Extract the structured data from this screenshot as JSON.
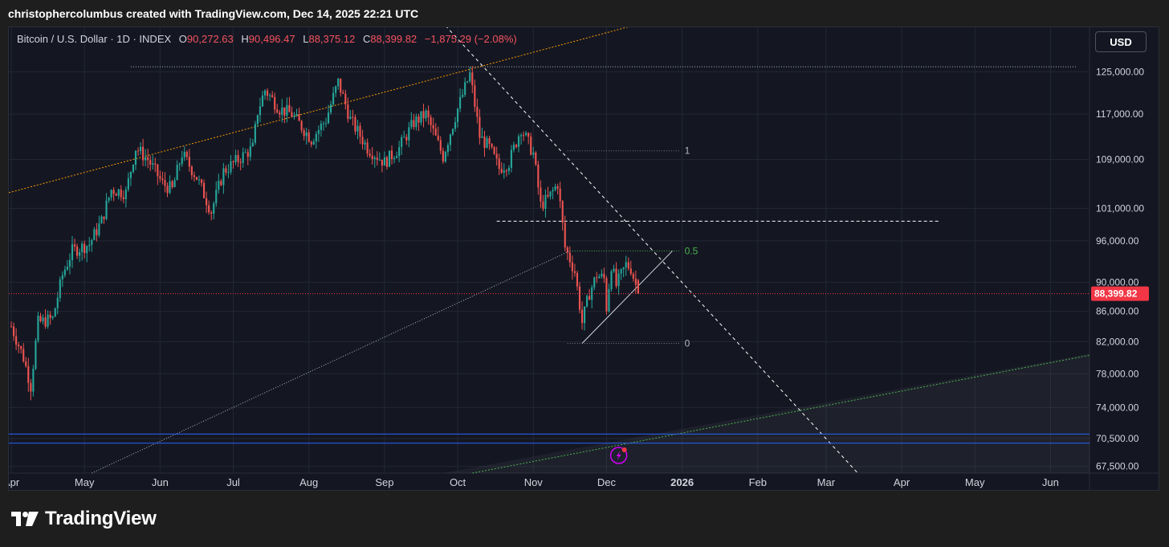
{
  "header": {
    "text": "christophercolumbus created with TradingView.com, Dec 14, 2025 22:21 UTC"
  },
  "legend": {
    "symbol": "Bitcoin / U.S. Dollar · 1D · INDEX",
    "open_label": "O",
    "open": "90,272.63",
    "high_label": "H",
    "high": "90,496.47",
    "low_label": "L",
    "low": "88,375.12",
    "close_label": "C",
    "close": "88,399.82",
    "change": "−1,875.29 (−2.08%)"
  },
  "toolbar": {
    "currency": "USD"
  },
  "brand": {
    "name": "TradingView"
  },
  "colors": {
    "up": "#26a69a",
    "down": "#ef5350",
    "bg": "#141722",
    "grid": "#232735",
    "price_badge": "#f23645",
    "fib_mid": "#4caf50",
    "blue_line": "#2962ff",
    "orange_line": "#ff9800",
    "green_line": "#4caf50"
  },
  "chart_data": {
    "type": "candlestick",
    "symbol": "Bitcoin / U.S. Dollar",
    "interval": "1D",
    "scale": "log",
    "last_price": 88399.82,
    "last_price_label": "88,399.82",
    "ylim": [
      66800,
      134000
    ],
    "y_ticks": [
      {
        "value": 125000,
        "label": "125,000.00"
      },
      {
        "value": 117000,
        "label": "117,000.00"
      },
      {
        "value": 109000,
        "label": "109,000.00"
      },
      {
        "value": 101000,
        "label": "101,000.00"
      },
      {
        "value": 96000,
        "label": "96,000.00"
      },
      {
        "value": 90000,
        "label": "90,000.00"
      },
      {
        "value": 86000,
        "label": "86,000.00"
      },
      {
        "value": 82000,
        "label": "82,000.00"
      },
      {
        "value": 78000,
        "label": "78,000.00"
      },
      {
        "value": 74000,
        "label": "74,000.00"
      },
      {
        "value": 70500,
        "label": "70,500.00"
      },
      {
        "value": 67500,
        "label": "67,500.00"
      }
    ],
    "x_range": [
      "2025-03-31",
      "2026-06-17"
    ],
    "x_ticks": [
      {
        "date": "2025-04-01",
        "label": "Apr"
      },
      {
        "date": "2025-05-01",
        "label": "May"
      },
      {
        "date": "2025-06-01",
        "label": "Jun"
      },
      {
        "date": "2025-07-01",
        "label": "Jul"
      },
      {
        "date": "2025-08-01",
        "label": "Aug"
      },
      {
        "date": "2025-09-01",
        "label": "Sep"
      },
      {
        "date": "2025-10-01",
        "label": "Oct"
      },
      {
        "date": "2025-11-01",
        "label": "Nov"
      },
      {
        "date": "2025-12-01",
        "label": "Dec"
      },
      {
        "date": "2026-01-01",
        "label": "2026",
        "bold": true
      },
      {
        "date": "2026-02-01",
        "label": "Feb"
      },
      {
        "date": "2026-03-01",
        "label": "Mar"
      },
      {
        "date": "2026-04-01",
        "label": "Apr"
      },
      {
        "date": "2026-05-01",
        "label": "May"
      },
      {
        "date": "2026-06-01",
        "label": "Jun"
      }
    ],
    "close_path": [
      {
        "date": "2025-04-01",
        "price": 84000
      },
      {
        "date": "2025-04-06",
        "price": 80000
      },
      {
        "date": "2025-04-09",
        "price": 76500
      },
      {
        "date": "2025-04-12",
        "price": 84500
      },
      {
        "date": "2025-04-18",
        "price": 85000
      },
      {
        "date": "2025-04-22",
        "price": 91000
      },
      {
        "date": "2025-04-26",
        "price": 94500
      },
      {
        "date": "2025-05-03",
        "price": 95500
      },
      {
        "date": "2025-05-08",
        "price": 99000
      },
      {
        "date": "2025-05-12",
        "price": 104000
      },
      {
        "date": "2025-05-18",
        "price": 103500
      },
      {
        "date": "2025-05-22",
        "price": 111000
      },
      {
        "date": "2025-05-27",
        "price": 109000
      },
      {
        "date": "2025-06-02",
        "price": 105000
      },
      {
        "date": "2025-06-06",
        "price": 104000
      },
      {
        "date": "2025-06-10",
        "price": 110000
      },
      {
        "date": "2025-06-16",
        "price": 106000
      },
      {
        "date": "2025-06-22",
        "price": 100500
      },
      {
        "date": "2025-06-27",
        "price": 107000
      },
      {
        "date": "2025-07-03",
        "price": 109000
      },
      {
        "date": "2025-07-09",
        "price": 111000
      },
      {
        "date": "2025-07-11",
        "price": 117500
      },
      {
        "date": "2025-07-14",
        "price": 121500
      },
      {
        "date": "2025-07-20",
        "price": 118000
      },
      {
        "date": "2025-07-25",
        "price": 117000
      },
      {
        "date": "2025-08-02",
        "price": 112500
      },
      {
        "date": "2025-08-08",
        "price": 116000
      },
      {
        "date": "2025-08-13",
        "price": 123000
      },
      {
        "date": "2025-08-18",
        "price": 116000
      },
      {
        "date": "2025-08-25",
        "price": 111000
      },
      {
        "date": "2025-09-01",
        "price": 108500
      },
      {
        "date": "2025-09-07",
        "price": 111000
      },
      {
        "date": "2025-09-13",
        "price": 115500
      },
      {
        "date": "2025-09-18",
        "price": 117000
      },
      {
        "date": "2025-09-25",
        "price": 109500
      },
      {
        "date": "2025-10-01",
        "price": 118000
      },
      {
        "date": "2025-10-06",
        "price": 124500
      },
      {
        "date": "2025-10-10",
        "price": 113000
      },
      {
        "date": "2025-10-14",
        "price": 111000
      },
      {
        "date": "2025-10-18",
        "price": 107500
      },
      {
        "date": "2025-10-22",
        "price": 108500
      },
      {
        "date": "2025-10-27",
        "price": 114500
      },
      {
        "date": "2025-11-01",
        "price": 110000
      },
      {
        "date": "2025-11-04",
        "price": 101500
      },
      {
        "date": "2025-11-07",
        "price": 102500
      },
      {
        "date": "2025-11-11",
        "price": 105000
      },
      {
        "date": "2025-11-14",
        "price": 95000
      },
      {
        "date": "2025-11-18",
        "price": 91500
      },
      {
        "date": "2025-11-21",
        "price": 84500
      },
      {
        "date": "2025-11-24",
        "price": 88500
      },
      {
        "date": "2025-11-27",
        "price": 91000
      },
      {
        "date": "2025-11-30",
        "price": 90500
      },
      {
        "date": "2025-12-01",
        "price": 86500
      },
      {
        "date": "2025-12-03",
        "price": 92500
      },
      {
        "date": "2025-12-05",
        "price": 89500
      },
      {
        "date": "2025-12-09",
        "price": 92500
      },
      {
        "date": "2025-12-11",
        "price": 92000
      },
      {
        "date": "2025-12-14",
        "price": 88400
      }
    ],
    "drawings": {
      "fib_levels": [
        {
          "label": "1",
          "price": 110500
        },
        {
          "label": "0.5",
          "price": 94500
        },
        {
          "label": "0",
          "price": 81800
        }
      ],
      "ath_line": {
        "price": 126000,
        "from": "2025-05-20",
        "to": "2026-06-12"
      },
      "horizontal_dashed": {
        "price": 99000,
        "from": "2025-10-17",
        "to": "2026-04-17"
      },
      "blue_lines": [
        71000,
        70000
      ],
      "last_price_line": 88399.82
    }
  }
}
